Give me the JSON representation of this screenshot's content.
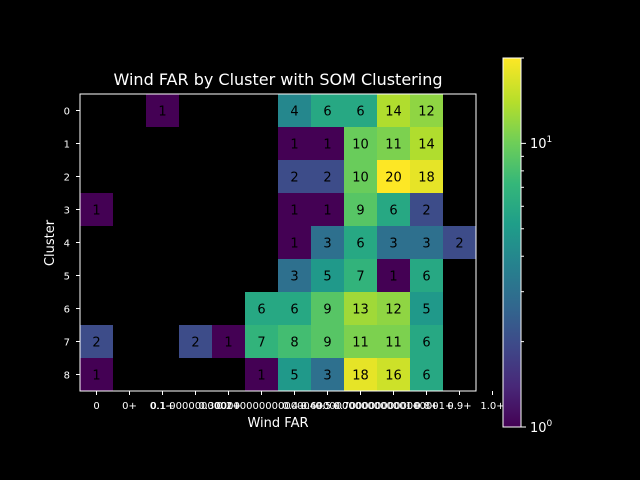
{
  "chart_data": {
    "type": "heatmap",
    "title": "Wind FAR by Cluster with SOM Clustering",
    "xlabel": "Wind FAR",
    "ylabel": "Cluster",
    "x_tick_labels": [
      "0",
      "0+",
      "0.1+",
      "0.1-0000000001+",
      "0.2+",
      "0.30000000000000004+",
      "0.4+",
      "0.5+",
      "0.6000000000000001+",
      "0.7000000000000001+",
      "0.8+",
      "0.9+",
      "1.0+"
    ],
    "y_tick_labels": [
      "0",
      "1",
      "2",
      "3",
      "4",
      "5",
      "6",
      "7",
      "8"
    ],
    "colorbar": {
      "scale": "log",
      "min": 1,
      "max": 20,
      "labels": [
        "10^0",
        "10^1"
      ]
    },
    "colormap": [
      "#440154",
      "#482878",
      "#3e4989",
      "#31688e",
      "#26828e",
      "#1f9e89",
      "#35b779",
      "#6ece58",
      "#b5de2b",
      "#fde725"
    ],
    "background": "#000000",
    "cells": [
      {
        "row": 0,
        "col": 2,
        "value": 1
      },
      {
        "row": 0,
        "col": 6,
        "value": 4
      },
      {
        "row": 0,
        "col": 7,
        "value": 6
      },
      {
        "row": 0,
        "col": 8,
        "value": 6
      },
      {
        "row": 0,
        "col": 9,
        "value": 14
      },
      {
        "row": 0,
        "col": 10,
        "value": 12
      },
      {
        "row": 1,
        "col": 6,
        "value": 1
      },
      {
        "row": 1,
        "col": 7,
        "value": 1
      },
      {
        "row": 1,
        "col": 8,
        "value": 10
      },
      {
        "row": 1,
        "col": 9,
        "value": 11
      },
      {
        "row": 1,
        "col": 10,
        "value": 14
      },
      {
        "row": 2,
        "col": 6,
        "value": 2
      },
      {
        "row": 2,
        "col": 7,
        "value": 2
      },
      {
        "row": 2,
        "col": 8,
        "value": 10
      },
      {
        "row": 2,
        "col": 9,
        "value": 20
      },
      {
        "row": 2,
        "col": 10,
        "value": 18
      },
      {
        "row": 3,
        "col": 0,
        "value": 1
      },
      {
        "row": 3,
        "col": 6,
        "value": 1
      },
      {
        "row": 3,
        "col": 7,
        "value": 1
      },
      {
        "row": 3,
        "col": 8,
        "value": 9
      },
      {
        "row": 3,
        "col": 9,
        "value": 6
      },
      {
        "row": 3,
        "col": 10,
        "value": 2
      },
      {
        "row": 4,
        "col": 6,
        "value": 1
      },
      {
        "row": 4,
        "col": 7,
        "value": 3
      },
      {
        "row": 4,
        "col": 8,
        "value": 6
      },
      {
        "row": 4,
        "col": 9,
        "value": 3
      },
      {
        "row": 4,
        "col": 10,
        "value": 3
      },
      {
        "row": 4,
        "col": 11,
        "value": 2
      },
      {
        "row": 5,
        "col": 6,
        "value": 3
      },
      {
        "row": 5,
        "col": 7,
        "value": 5
      },
      {
        "row": 5,
        "col": 8,
        "value": 7
      },
      {
        "row": 5,
        "col": 9,
        "value": 1
      },
      {
        "row": 5,
        "col": 10,
        "value": 6
      },
      {
        "row": 6,
        "col": 5,
        "value": 6
      },
      {
        "row": 6,
        "col": 6,
        "value": 6
      },
      {
        "row": 6,
        "col": 7,
        "value": 9
      },
      {
        "row": 6,
        "col": 8,
        "value": 13
      },
      {
        "row": 6,
        "col": 9,
        "value": 12
      },
      {
        "row": 6,
        "col": 10,
        "value": 5
      },
      {
        "row": 7,
        "col": 0,
        "value": 2
      },
      {
        "row": 7,
        "col": 3,
        "value": 2
      },
      {
        "row": 7,
        "col": 4,
        "value": 1
      },
      {
        "row": 7,
        "col": 5,
        "value": 7
      },
      {
        "row": 7,
        "col": 6,
        "value": 8
      },
      {
        "row": 7,
        "col": 7,
        "value": 9
      },
      {
        "row": 7,
        "col": 8,
        "value": 11
      },
      {
        "row": 7,
        "col": 9,
        "value": 11
      },
      {
        "row": 7,
        "col": 10,
        "value": 6
      },
      {
        "row": 8,
        "col": 0,
        "value": 1
      },
      {
        "row": 8,
        "col": 5,
        "value": 1
      },
      {
        "row": 8,
        "col": 6,
        "value": 5
      },
      {
        "row": 8,
        "col": 7,
        "value": 3
      },
      {
        "row": 8,
        "col": 8,
        "value": 18
      },
      {
        "row": 8,
        "col": 9,
        "value": 16
      },
      {
        "row": 8,
        "col": 10,
        "value": 6
      }
    ]
  }
}
